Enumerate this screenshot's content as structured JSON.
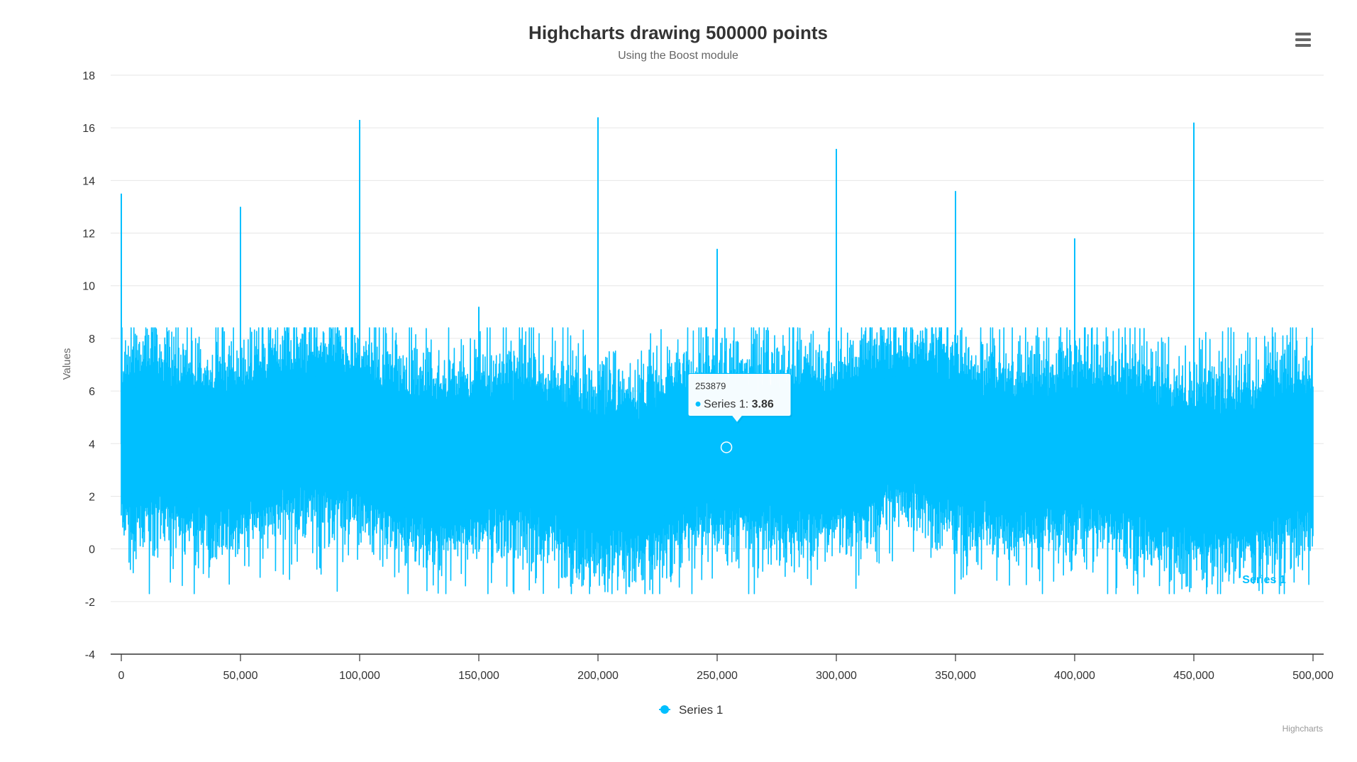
{
  "chart_data": {
    "type": "line",
    "title": "Highcharts drawing 500000 points",
    "subtitle": "Using the Boost module",
    "xlabel": "",
    "ylabel": "Values",
    "xlim": [
      0,
      500000
    ],
    "ylim": [
      -4,
      18
    ],
    "x_ticks": [
      0,
      50000,
      100000,
      150000,
      200000,
      250000,
      300000,
      350000,
      400000,
      450000,
      500000
    ],
    "x_tick_labels": [
      "0",
      "50,000",
      "100,000",
      "150,000",
      "200,000",
      "250,000",
      "300,000",
      "350,000",
      "400,000",
      "450,000",
      "500,000"
    ],
    "y_ticks": [
      -4,
      -2,
      0,
      2,
      4,
      6,
      8,
      10,
      12,
      14,
      16,
      18
    ],
    "grid": true,
    "legend": {
      "position": "bottom-center",
      "entries": [
        "Series 1"
      ]
    },
    "series": [
      {
        "name": "Series 1",
        "color": "#00bfff",
        "point_count": 500000,
        "typical_range": [
          0,
          7.5
        ],
        "extremes_range": [
          -1.7,
          8.4
        ],
        "spikes": [
          {
            "x": 0,
            "y": 13.5
          },
          {
            "x": 50000,
            "y": 13.0
          },
          {
            "x": 100000,
            "y": 16.3
          },
          {
            "x": 150000,
            "y": 9.2
          },
          {
            "x": 200000,
            "y": 16.4
          },
          {
            "x": 250000,
            "y": 11.4
          },
          {
            "x": 300000,
            "y": 15.2
          },
          {
            "x": 350000,
            "y": 13.6
          },
          {
            "x": 400000,
            "y": 11.8
          },
          {
            "x": 450000,
            "y": 16.2
          }
        ]
      }
    ],
    "series_end_label": "Series 1",
    "tooltip": {
      "x": 253879,
      "series": "Series 1",
      "label": "Series 1: ",
      "value": "3.86",
      "header": "253879"
    },
    "credits": "Highcharts"
  },
  "menu": {
    "icon": "hamburger-menu-icon"
  }
}
